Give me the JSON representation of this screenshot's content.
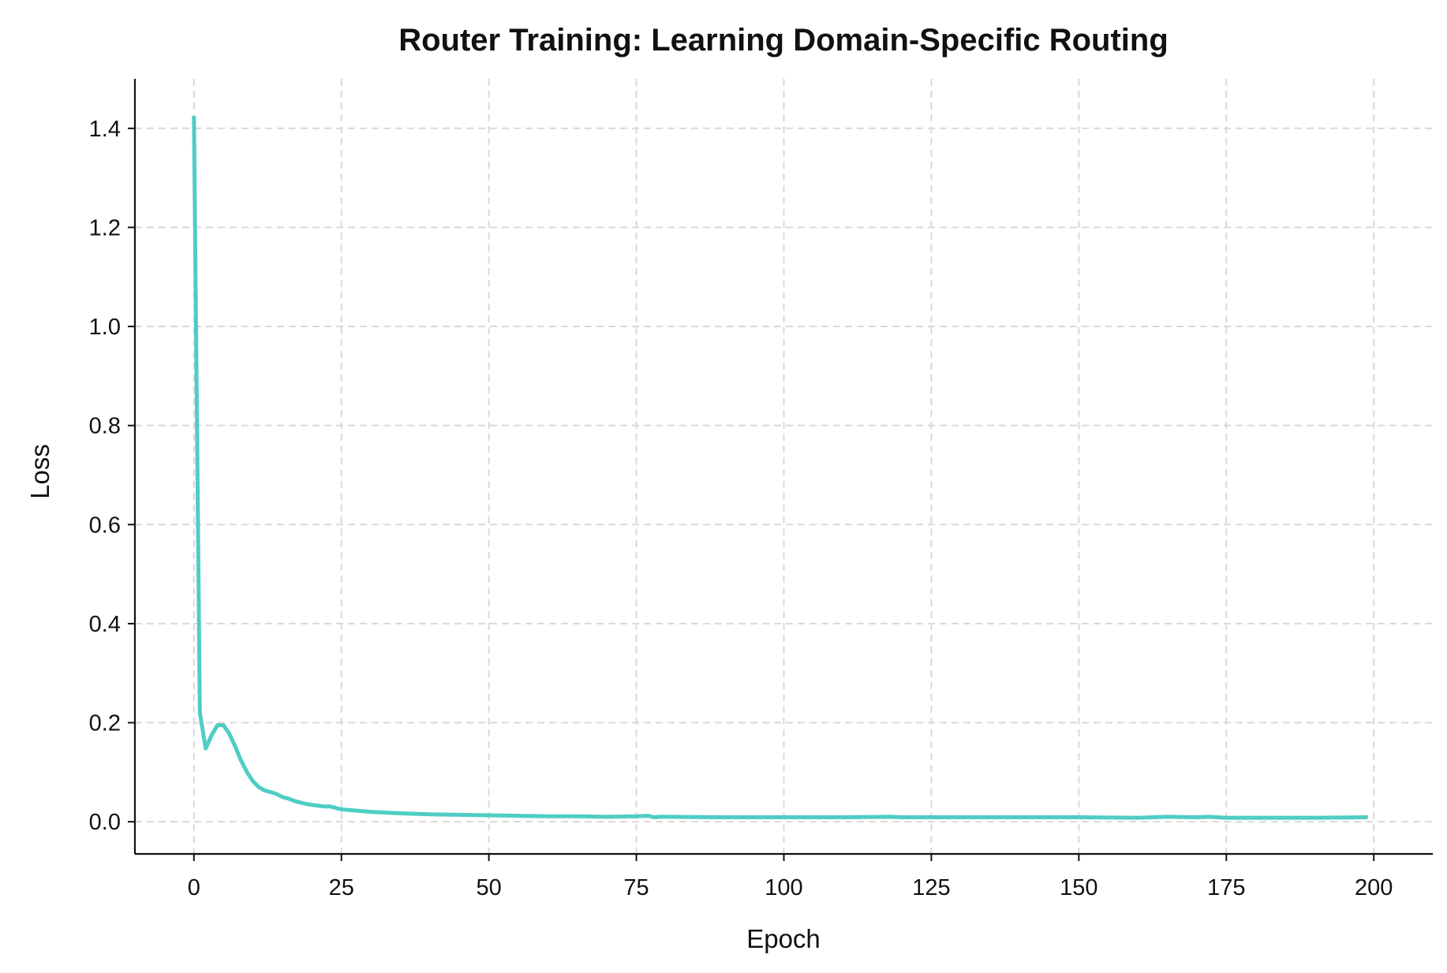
{
  "chart_data": {
    "type": "line",
    "title": "Router Training: Learning Domain-Specific Routing",
    "xlabel": "Epoch",
    "ylabel": "Loss",
    "xlim": [
      -10,
      210
    ],
    "ylim": [
      -0.065,
      1.5
    ],
    "xticks": [
      0,
      25,
      50,
      75,
      100,
      125,
      150,
      175,
      200
    ],
    "yticks": [
      0.0,
      0.2,
      0.4,
      0.6,
      0.8,
      1.0,
      1.2,
      1.4
    ],
    "xtick_labels": [
      "0",
      "25",
      "50",
      "75",
      "100",
      "125",
      "150",
      "175",
      "200"
    ],
    "ytick_labels": [
      "0.0",
      "0.2",
      "0.4",
      "0.6",
      "0.8",
      "1.0",
      "1.2",
      "1.4"
    ],
    "grid": true,
    "legend": "none",
    "series": [
      {
        "color": "#4ECDC4",
        "x": [
          0,
          1,
          2,
          3,
          4,
          5,
          6,
          7,
          8,
          9,
          10,
          11,
          12,
          13,
          14,
          15,
          16,
          17,
          18,
          19,
          20,
          22,
          23,
          24,
          25,
          27,
          30,
          35,
          40,
          45,
          50,
          55,
          60,
          65,
          70,
          75,
          77,
          78,
          79,
          80,
          90,
          100,
          110,
          118,
          120,
          130,
          140,
          150,
          160,
          165,
          170,
          172,
          175,
          180,
          190,
          199
        ],
        "y": [
          1.425,
          0.22,
          0.148,
          0.175,
          0.195,
          0.195,
          0.178,
          0.152,
          0.123,
          0.1,
          0.082,
          0.07,
          0.063,
          0.06,
          0.056,
          0.05,
          0.047,
          0.042,
          0.039,
          0.036,
          0.034,
          0.031,
          0.031,
          0.028,
          0.025,
          0.023,
          0.02,
          0.017,
          0.015,
          0.014,
          0.013,
          0.012,
          0.011,
          0.011,
          0.01,
          0.011,
          0.012,
          0.009,
          0.01,
          0.01,
          0.009,
          0.009,
          0.009,
          0.01,
          0.009,
          0.009,
          0.009,
          0.009,
          0.008,
          0.01,
          0.009,
          0.01,
          0.008,
          0.008,
          0.008,
          0.009
        ]
      }
    ]
  }
}
